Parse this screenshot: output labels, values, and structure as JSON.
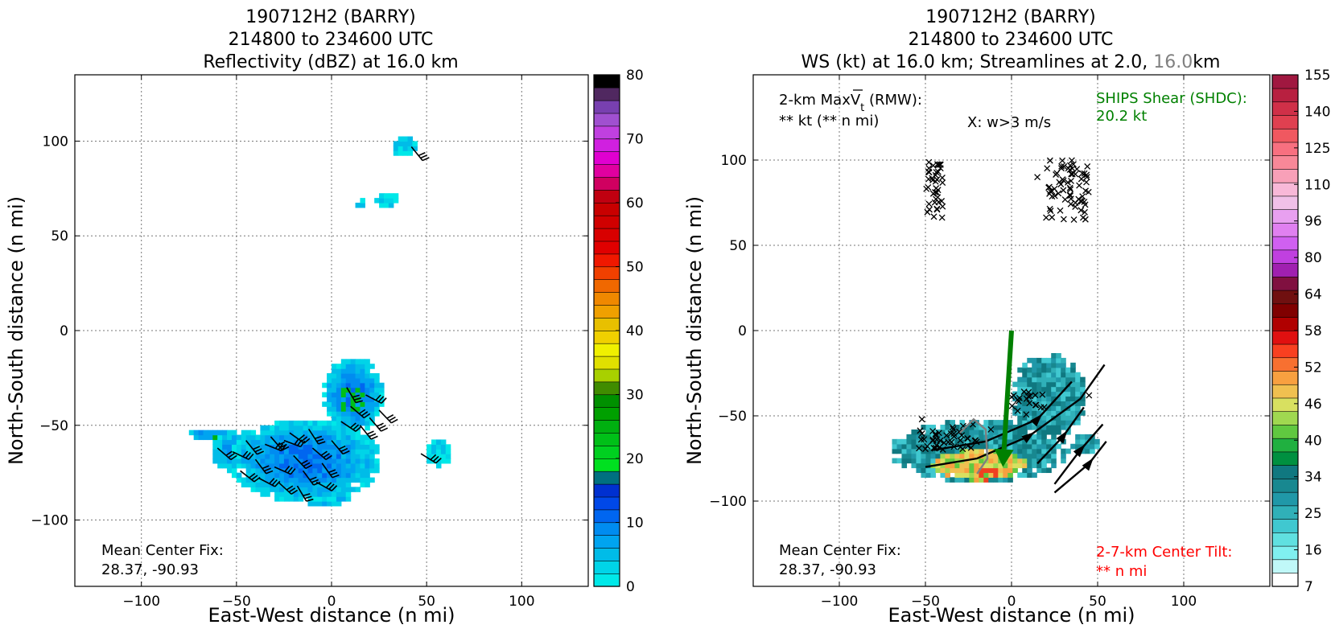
{
  "chart_data": [
    {
      "type": "heatmap",
      "title_lines": [
        "190712H2 (BARRY)",
        "214800 to 234600 UTC",
        "Reflectivity (dBZ) at 16.0 km"
      ],
      "xlabel": "East-West distance (n mi)",
      "ylabel": "North-South distance (n mi)",
      "xlim": [
        -135,
        135
      ],
      "ylim": [
        -135,
        135
      ],
      "xticks": [
        -100,
        -50,
        0,
        50,
        100
      ],
      "yticks": [
        -100,
        -50,
        0,
        50,
        100
      ],
      "xtick_labels": [
        "−100",
        "−50",
        "0",
        "50",
        "100"
      ],
      "ytick_labels": [
        "−100",
        "−50",
        "0",
        "50",
        "100"
      ],
      "grid": true,
      "colorbar": {
        "ticks": [
          "0",
          "10",
          "20",
          "30",
          "40",
          "50",
          "60",
          "70",
          "80"
        ],
        "colors": [
          "#00e8e8",
          "#00d4e8",
          "#00bce8",
          "#00a4f0",
          "#008cf0",
          "#0066f0",
          "#0048e8",
          "#0030d0",
          "#007080",
          "#00e020",
          "#00d020",
          "#00c018",
          "#00b010",
          "#00a000",
          "#009000",
          "#408c00",
          "#a8d000",
          "#e0e000",
          "#f0f000",
          "#f0d000",
          "#e8c000",
          "#f0a000",
          "#f08800",
          "#f06800",
          "#f04000",
          "#f01800",
          "#e00000",
          "#d80000",
          "#d00000",
          "#c80000",
          "#c00010",
          "#d00060",
          "#e000a0",
          "#e000d0",
          "#d020e0",
          "#c040e0",
          "#a050d0",
          "#7840b0",
          "#502860",
          "#000000"
        ]
      },
      "annotations": {
        "center_fix_label": "Mean Center Fix:",
        "center_fix_value": "28.37, -90.93"
      },
      "echo_regions": [
        {
          "x": [
            -60,
            30
          ],
          "y": [
            -95,
            -40
          ],
          "dbz": 5
        },
        {
          "x": [
            0,
            25
          ],
          "y": [
            -55,
            -15
          ],
          "dbz": 12
        },
        {
          "x": [
            20,
            40
          ],
          "y": [
            60,
            75
          ],
          "dbz": 5
        },
        {
          "x": [
            30,
            45
          ],
          "y": [
            90,
            105
          ],
          "dbz": 5
        },
        {
          "x": [
            50,
            60
          ],
          "y": [
            -75,
            -60
          ],
          "dbz": 5
        }
      ]
    },
    {
      "type": "heatmap",
      "title_lines": [
        "190712H2 (BARRY)",
        "214800 to 234600 UTC"
      ],
      "title_line3_prefix": "WS (kt) at 16.0 km; Streamlines at 2.0, ",
      "title_line3_gray": "16.0",
      "title_line3_suffix": "km",
      "xlabel": "East-West distance (n mi)",
      "ylabel": "North-South distance (n mi)",
      "xlim": [
        -150,
        150
      ],
      "ylim": [
        -150,
        150
      ],
      "xticks": [
        -100,
        -50,
        0,
        50,
        100
      ],
      "yticks": [
        -100,
        -50,
        0,
        50,
        100
      ],
      "xtick_labels": [
        "−100",
        "−50",
        "0",
        "50",
        "100"
      ],
      "ytick_labels": [
        "−100",
        "−50",
        "0",
        "50",
        "100"
      ],
      "grid": true,
      "colorbar": {
        "ticks": [
          "7",
          "16",
          "25",
          "34",
          "40",
          "46",
          "52",
          "58",
          "64",
          "80",
          "96",
          "110",
          "125",
          "140",
          "155"
        ],
        "colors": [
          "#ffffff",
          "#c0f8f8",
          "#80f0f0",
          "#60e0e0",
          "#40c8d0",
          "#30b0b8",
          "#2098a8",
          "#188890",
          "#107880",
          "#009040",
          "#20b040",
          "#60c840",
          "#a0d850",
          "#d8e060",
          "#f0c050",
          "#f8a040",
          "#f87030",
          "#f84020",
          "#e01010",
          "#b00000",
          "#800000",
          "#701010",
          "#801040",
          "#a020b0",
          "#c040e0",
          "#d060f0",
          "#e080f0",
          "#e8a0f0",
          "#f0c0e8",
          "#f8b8d8",
          "#f8a0b8",
          "#f88898",
          "#f87080",
          "#f05860",
          "#e04050",
          "#d03048",
          "#b82040",
          "#a01840"
        ]
      },
      "annotations": {
        "rmw_label": "2-km MaxV",
        "rmw_sub": "t",
        "rmw_label_suffix": " (RMW):",
        "rmw_value": "** kt (** n mi)",
        "w_marker_label": "X: w>3 m/s",
        "ships_label": "SHIPS Shear (SHDC):",
        "ships_value": "20.2 kt",
        "center_fix_label": "Mean Center Fix:",
        "center_fix_value": "28.37, -90.93",
        "tilt_label": "2-7-km Center Tilt:",
        "tilt_value": "** n mi"
      },
      "shear_vector": {
        "from": [
          0,
          0
        ],
        "to": [
          -5,
          -80
        ],
        "color": "#008000"
      },
      "colors": {
        "ships": "#008000",
        "tilt": "#ff0000",
        "streamline_gray": "#808080"
      }
    }
  ]
}
